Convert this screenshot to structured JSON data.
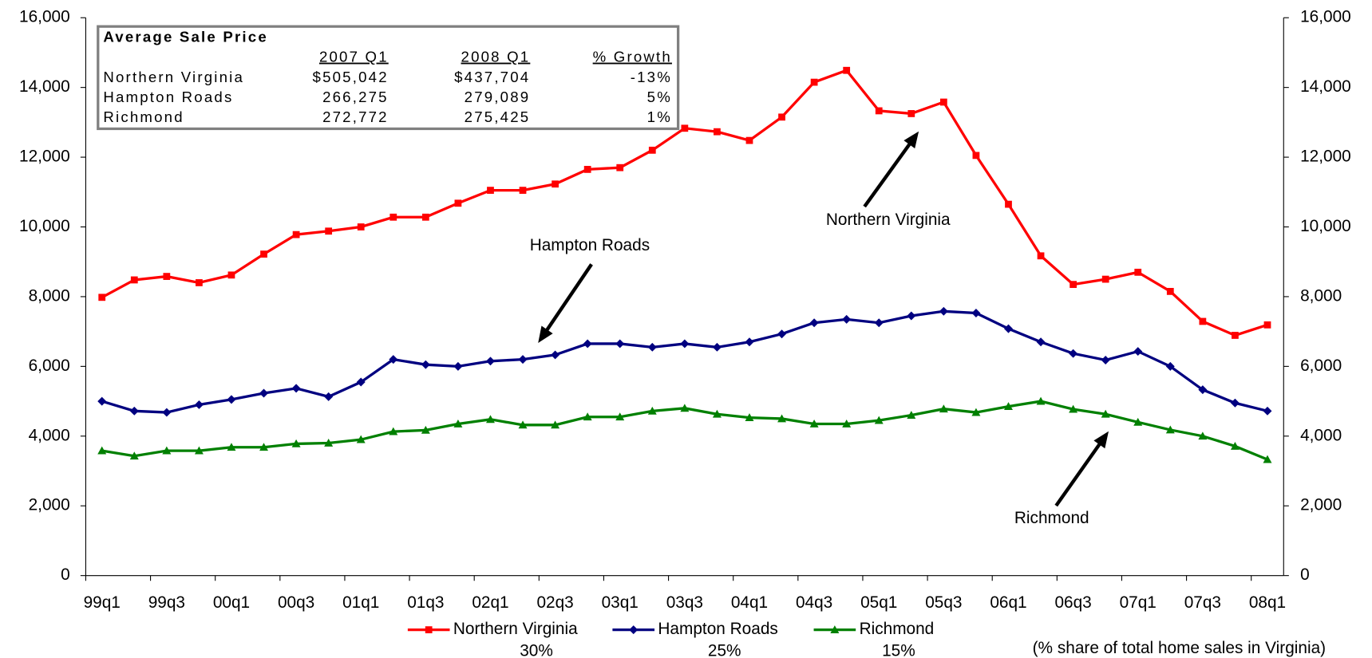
{
  "chart_data": {
    "type": "line",
    "categories": [
      "99q1",
      null,
      "99q3",
      null,
      "00q1",
      null,
      "00q3",
      null,
      "01q1",
      null,
      "01q3",
      null,
      "02q1",
      null,
      "02q3",
      null,
      "03q1",
      null,
      "03q3",
      null,
      "04q1",
      null,
      "04q3",
      null,
      "05q1",
      null,
      "05q3",
      null,
      "06q1",
      null,
      "06q3",
      null,
      "07q1",
      null,
      "07q3",
      null,
      "08q1"
    ],
    "series": [
      {
        "name": "Northern Virginia",
        "share": "30%",
        "color": "#ff0000",
        "marker": "square",
        "values": [
          7980,
          8480,
          8580,
          8400,
          8620,
          9220,
          9780,
          9880,
          10000,
          10280,
          10280,
          10680,
          11050,
          11050,
          11230,
          11650,
          11700,
          12200,
          12830,
          12730,
          12480,
          13150,
          14150,
          14490,
          13330,
          13250,
          13580,
          12050,
          10650,
          9170,
          8350,
          8500,
          8700,
          8150,
          7290,
          6890,
          7190
        ]
      },
      {
        "name": "Hampton Roads",
        "share": "25%",
        "color": "#000080",
        "marker": "diamond",
        "values": [
          5000,
          4720,
          4680,
          4900,
          5050,
          5230,
          5370,
          5130,
          5550,
          6200,
          6050,
          6000,
          6150,
          6200,
          6330,
          6650,
          6650,
          6550,
          6650,
          6550,
          6700,
          6930,
          7250,
          7350,
          7250,
          7450,
          7580,
          7530,
          7080,
          6700,
          6370,
          6180,
          6430,
          6000,
          5330,
          4950,
          4720
        ]
      },
      {
        "name": "Richmond",
        "share": "15%",
        "color": "#008000",
        "marker": "triangle",
        "values": [
          3580,
          3430,
          3580,
          3580,
          3680,
          3680,
          3780,
          3800,
          3900,
          4130,
          4170,
          4350,
          4480,
          4320,
          4320,
          4550,
          4550,
          4720,
          4800,
          4630,
          4530,
          4500,
          4350,
          4350,
          4450,
          4600,
          4780,
          4680,
          4850,
          5000,
          4770,
          4630,
          4400,
          4180,
          4000,
          3710,
          3330
        ]
      }
    ],
    "ylim": [
      0,
      16000
    ],
    "yticks": [
      0,
      {
        "value": 2000,
        "label": "2,000"
      },
      {
        "value": 4000,
        "label": "4,000"
      },
      {
        "value": 6000,
        "label": "6,000"
      },
      {
        "value": 8000,
        "label": "8,000"
      },
      {
        "value": 10000,
        "label": "10,000"
      },
      {
        "value": 12000,
        "label": "12,000"
      },
      {
        "value": 14000,
        "label": "14,000"
      },
      {
        "value": 16000,
        "label": "16,000"
      }
    ],
    "y2lim": [
      0,
      16000
    ],
    "y2ticks": [
      0,
      {
        "value": 2000,
        "label": "2,000"
      },
      {
        "value": 4000,
        "label": "4,000"
      },
      {
        "value": 6000,
        "label": "6,000"
      },
      {
        "value": 8000,
        "label": "8,000"
      },
      {
        "value": 10000,
        "label": "10,000"
      },
      {
        "value": 12000,
        "label": "12,000"
      },
      {
        "value": 14000,
        "label": "14,000"
      },
      {
        "value": 16000,
        "label": "16,000"
      }
    ],
    "annotations": [
      {
        "text": "Northern Virginia"
      },
      {
        "text": "Hampton Roads"
      },
      {
        "text": "Richmond"
      }
    ],
    "footnote": "(% share of total home sales in Virginia)",
    "table": {
      "title": "Average Sale Price",
      "columns": [
        "2007 Q1",
        "2008 Q1",
        "% Growth"
      ],
      "rows": [
        [
          "Northern Virginia",
          "$505,042",
          "$437,704",
          "-13%"
        ],
        [
          "Hampton Roads",
          "266,275",
          "279,089",
          "5%"
        ],
        [
          "Richmond",
          "272,772",
          "275,425",
          "1%"
        ]
      ]
    }
  }
}
